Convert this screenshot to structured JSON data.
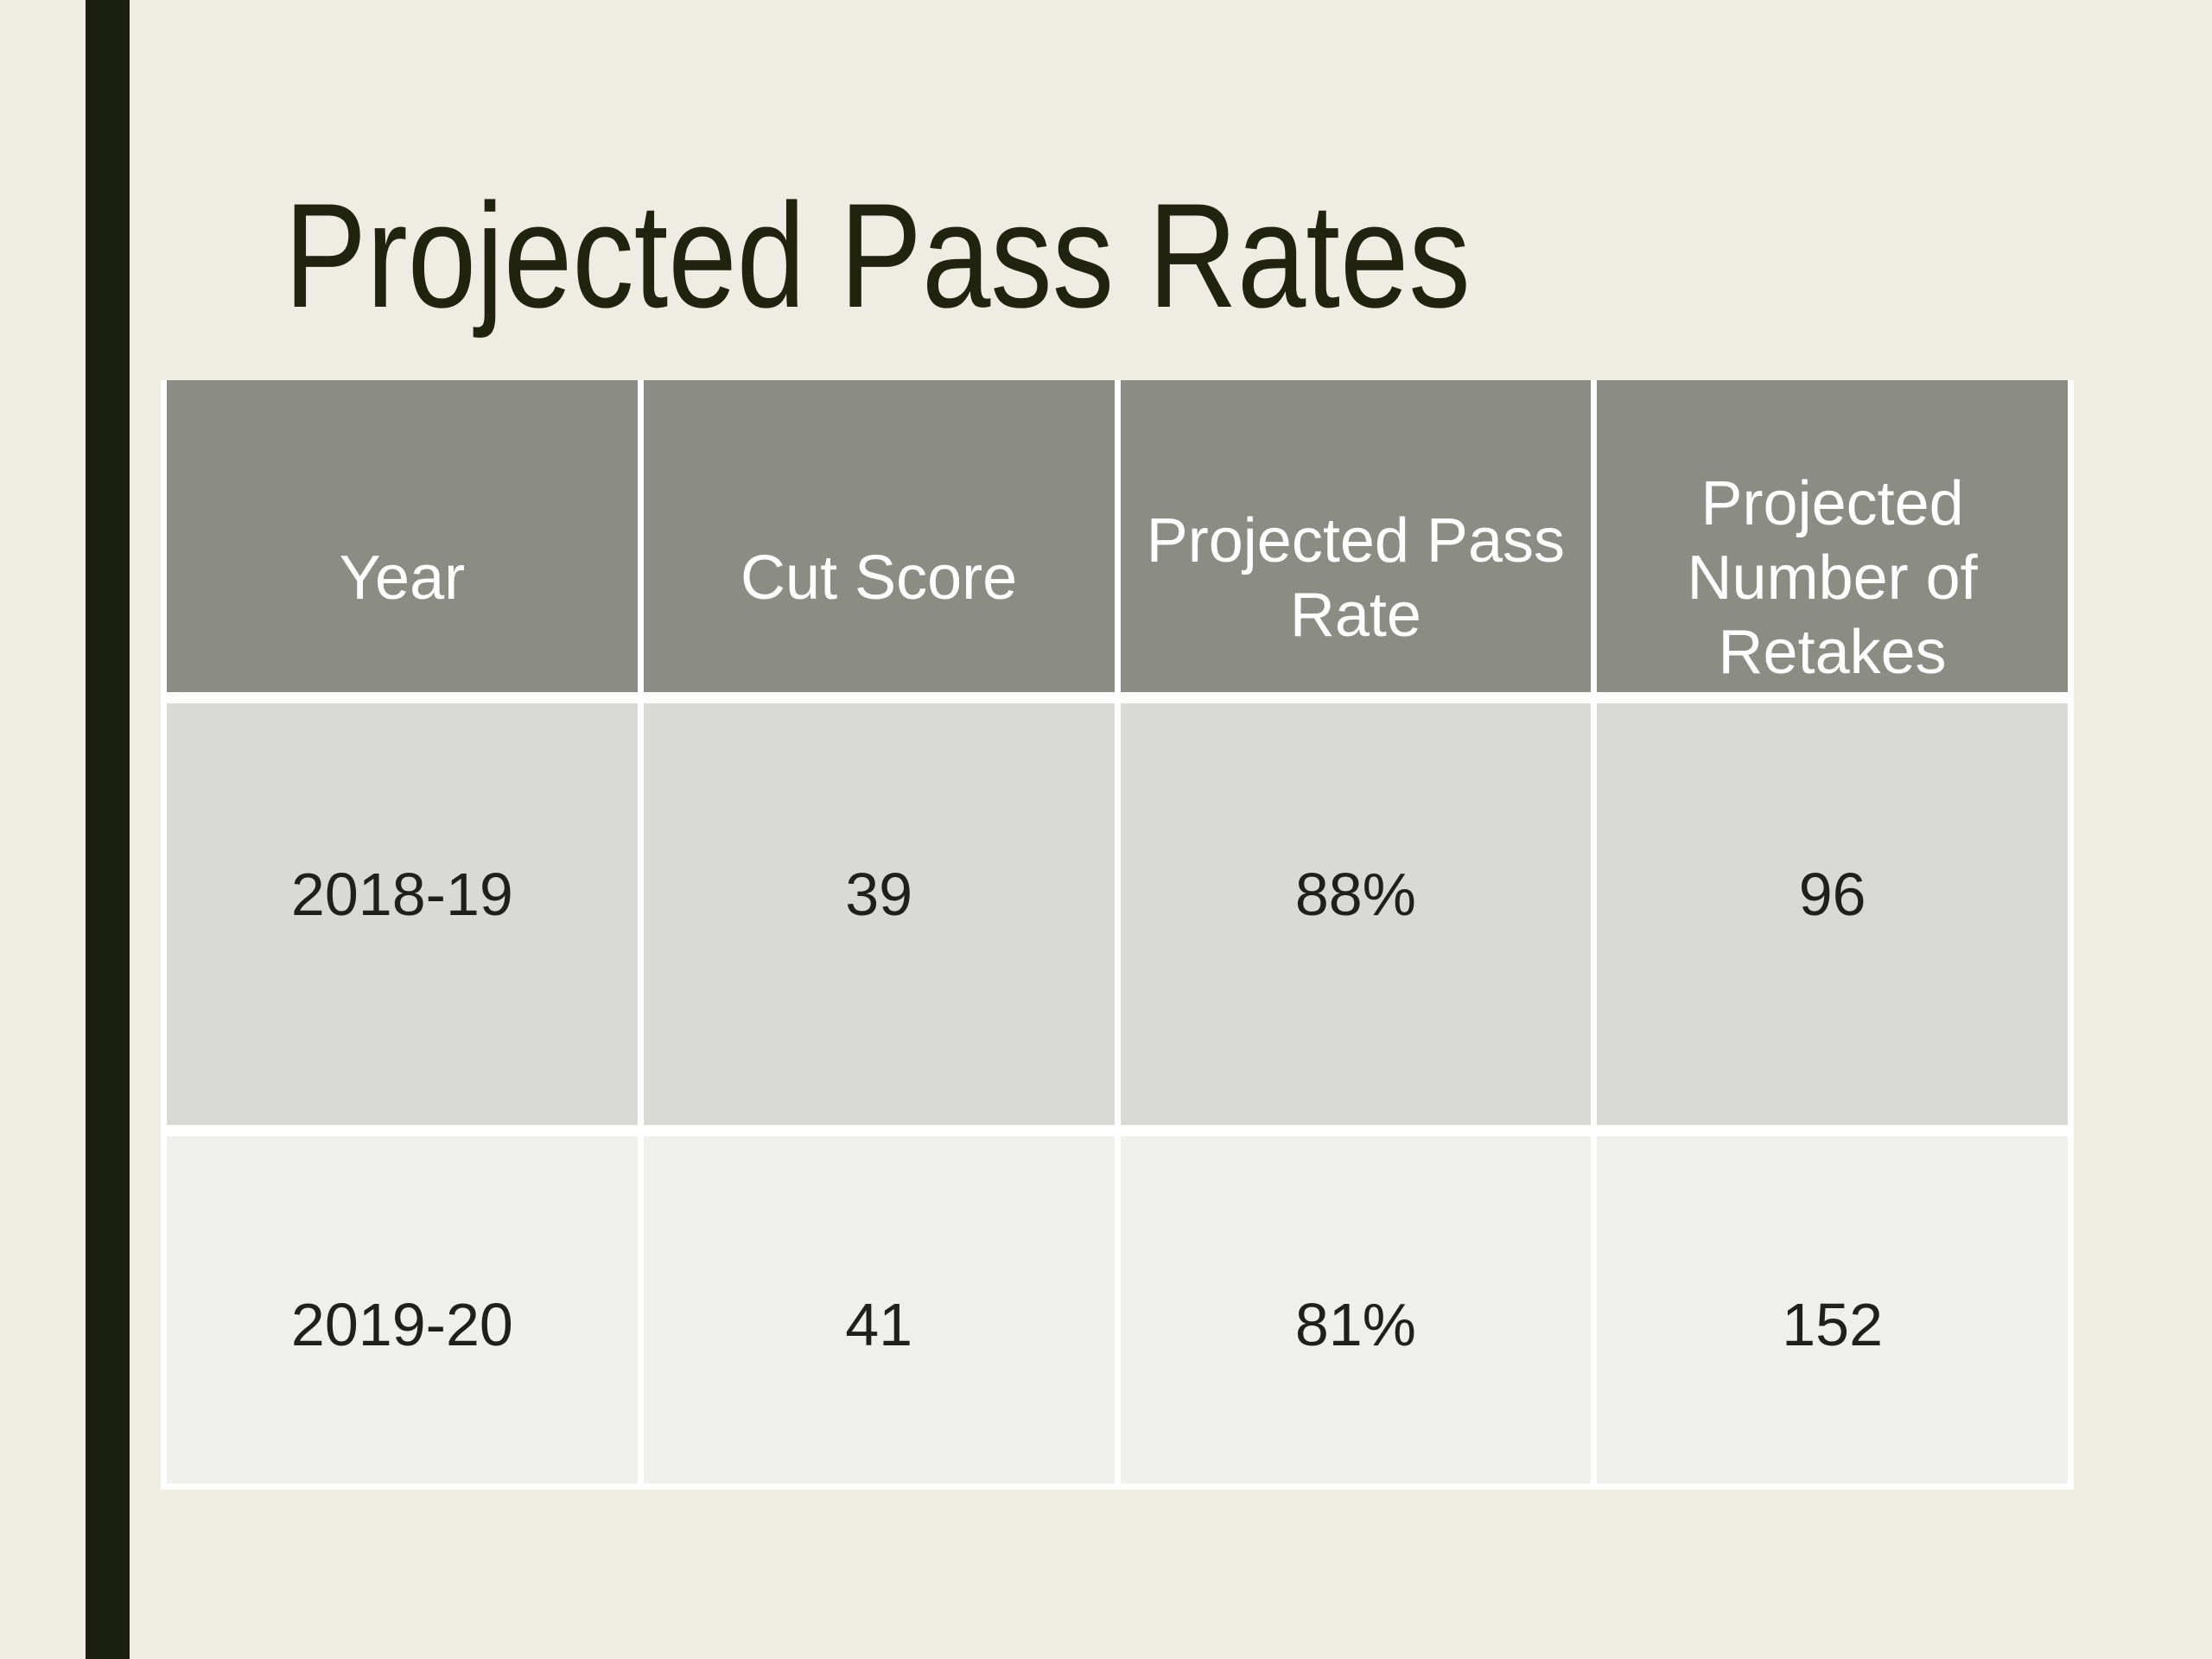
{
  "slide": {
    "title": "Projected Pass Rates"
  },
  "table": {
    "columns": [
      "Year",
      "Cut Score",
      "Projected Pass Rate",
      "Projected Number of Retakes"
    ],
    "rows": [
      [
        "2018-19",
        "39",
        "88%",
        "96"
      ],
      [
        "2019-20",
        "41",
        "81%",
        "152"
      ]
    ]
  },
  "colors": {
    "background": "#EFECE3",
    "accent_bar": "#1B200E",
    "title_text": "#20240E",
    "table_header_bg": "#8B8C83",
    "table_header_text": "#FFFFFF",
    "table_row1_bg": "#D9D9D5",
    "table_row2_bg": "#EFEFED",
    "table_body_text": "#1F1F1D",
    "table_border": "#FFFFFF"
  }
}
